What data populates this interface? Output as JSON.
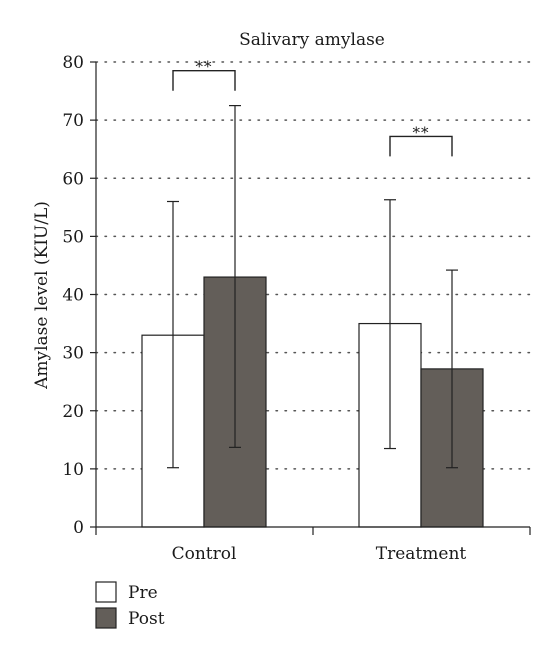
{
  "chart_data": {
    "type": "bar",
    "title": "Salivary amylase",
    "xlabel": "",
    "ylabel": "Amylase level (KIU/L)",
    "ylim": [
      0,
      80
    ],
    "yticks": [
      "0",
      "10",
      "20",
      "30",
      "40",
      "50",
      "60",
      "70",
      "80"
    ],
    "grid": "horizontal dotted",
    "legend_placement": "bottom-left",
    "categories": [
      "Control",
      "Treatment"
    ],
    "series": [
      {
        "name": "Pre",
        "values": [
          33,
          35
        ],
        "error_upper": [
          56,
          56.3
        ],
        "error_lower": [
          10.2,
          13.5
        ],
        "color": "#ffffff"
      },
      {
        "name": "Post",
        "values": [
          43,
          27.2
        ],
        "error_upper": [
          72.5,
          44.2
        ],
        "error_lower": [
          13.7,
          10.2
        ],
        "color": "#635e59"
      }
    ],
    "annotations": [
      {
        "category": "Control",
        "text": "**",
        "bracket_y": 78.5
      },
      {
        "category": "Treatment",
        "text": "**",
        "bracket_y": 67.2
      }
    ]
  }
}
